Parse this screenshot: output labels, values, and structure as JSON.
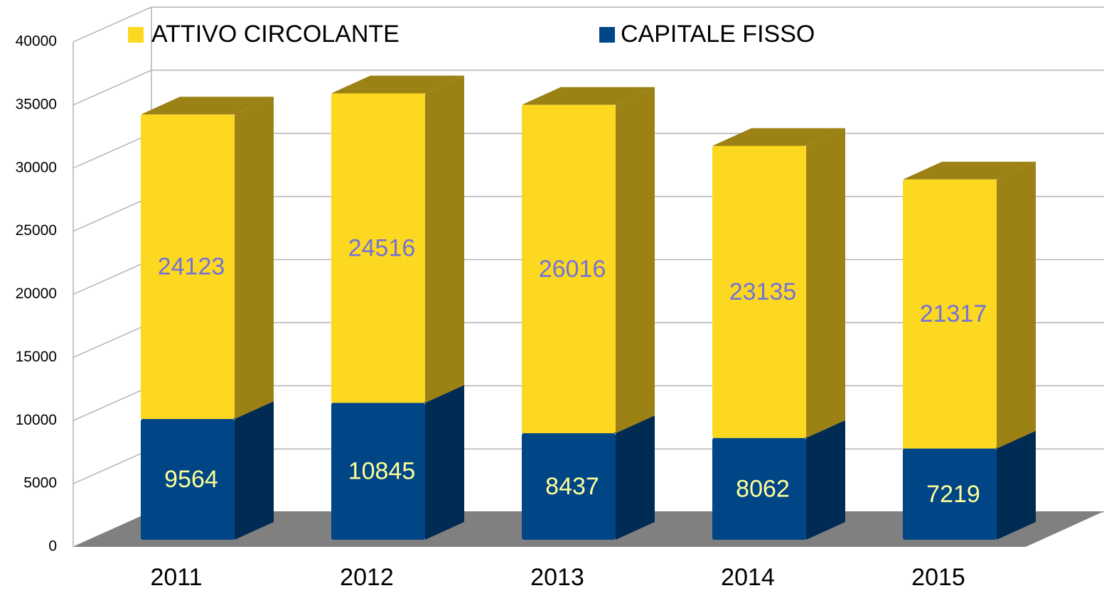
{
  "chart_data": {
    "type": "bar3d_stacked",
    "categories": [
      "2011",
      "2012",
      "2013",
      "2014",
      "2015"
    ],
    "series": [
      {
        "name": "CAPITALE FISSO",
        "color": "#004586",
        "side_color": "#002b52",
        "label_color": "#ffff99",
        "values": [
          9564,
          10845,
          8437,
          8062,
          7219
        ]
      },
      {
        "name": "ATTIVO CIRCOLANTE",
        "color": "#fdd820",
        "side_color": "#9c8114",
        "label_color": "#7272d8",
        "values": [
          24123,
          24516,
          26016,
          23135,
          21317
        ]
      }
    ],
    "ylim": [
      0,
      40000
    ],
    "yticks": [
      0,
      5000,
      10000,
      15000,
      20000,
      25000,
      30000,
      35000,
      40000
    ],
    "grid": true,
    "legend": "top"
  }
}
